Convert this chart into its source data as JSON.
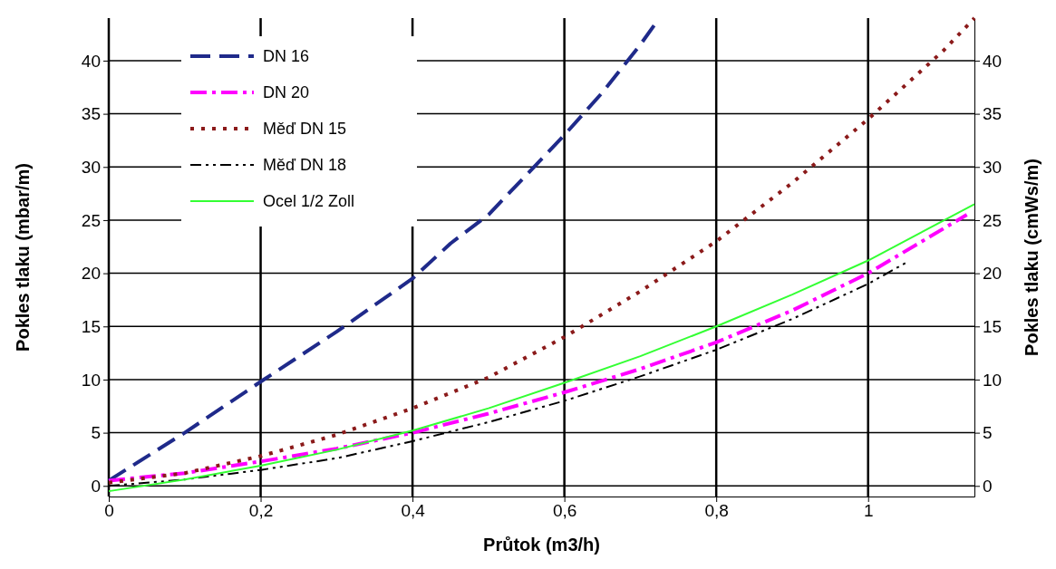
{
  "chart_data": {
    "type": "line",
    "xlabel": "Průtok (m3/h)",
    "ylabel": "Pokles tlaku (mbar/m)",
    "y2label": "Pokles tlaku (cmWs/m)",
    "xlim": [
      0,
      1.14
    ],
    "xticks": [
      0,
      {
        "value": 0.2,
        "label": "0,2"
      },
      {
        "value": 0.4,
        "label": "0,4"
      },
      {
        "value": 0.6,
        "label": "0,6"
      },
      {
        "value": 0.8,
        "label": "0,8"
      },
      1
    ],
    "ylim": [
      -1,
      44
    ],
    "yticks": [
      0,
      5,
      10,
      15,
      20,
      25,
      30,
      35,
      40
    ],
    "y2lim": [
      -1,
      44
    ],
    "y2ticks": [
      0,
      5,
      10,
      15,
      20,
      25,
      30,
      35,
      40
    ],
    "grid": true,
    "legend": "top left",
    "marker": "none",
    "series": [
      {
        "name": "DN 16",
        "color": "#1f2a8a",
        "line_style": "dashed",
        "x": [
          0,
          0.1,
          0.2,
          0.3,
          0.4,
          0.45,
          0.5,
          0.6,
          0.65,
          0.7,
          0.72
        ],
        "values": [
          0.5,
          5,
          9.8,
          14.5,
          19.5,
          22.8,
          25.5,
          33,
          37,
          41.5,
          43.5
        ]
      },
      {
        "name": "DN 20",
        "color": "#ff00ff",
        "line_style": "dashdot",
        "x": [
          0,
          0.1,
          0.2,
          0.3,
          0.4,
          0.5,
          0.6,
          0.7,
          0.8,
          0.9,
          1.0,
          1.13
        ],
        "values": [
          0.5,
          1.2,
          2.3,
          3.5,
          5,
          6.8,
          8.8,
          11,
          13.5,
          16.5,
          20,
          25.5
        ]
      },
      {
        "name": "Měď DN 15",
        "color": "#8b1a1a",
        "line_style": "dotted",
        "x": [
          0,
          0.1,
          0.2,
          0.3,
          0.4,
          0.5,
          0.6,
          0.7,
          0.8,
          0.9,
          1.0,
          1.1,
          1.14
        ],
        "values": [
          0.3,
          1.2,
          2.8,
          4.8,
          7.3,
          10.2,
          14,
          18.3,
          23,
          28.5,
          34.5,
          41,
          44
        ]
      },
      {
        "name": "Měď DN 18",
        "color": "#000000",
        "line_style": "dashdotdot",
        "x": [
          0,
          0.1,
          0.2,
          0.3,
          0.4,
          0.5,
          0.6,
          0.7,
          0.8,
          0.9,
          1.0,
          1.05
        ],
        "values": [
          0,
          0.6,
          1.5,
          2.6,
          4.2,
          6,
          8,
          10.3,
          12.8,
          15.7,
          19,
          21
        ]
      },
      {
        "name": "Ocel 1/2 Zoll",
        "color": "#33ff33",
        "line_style": "solid",
        "x": [
          0,
          0.1,
          0.2,
          0.3,
          0.4,
          0.5,
          0.6,
          0.7,
          0.8,
          0.9,
          1.0,
          1.14
        ],
        "values": [
          -0.5,
          0.6,
          1.9,
          3.4,
          5.2,
          7.3,
          9.7,
          12.2,
          15,
          18,
          21.2,
          26.5
        ]
      }
    ]
  }
}
